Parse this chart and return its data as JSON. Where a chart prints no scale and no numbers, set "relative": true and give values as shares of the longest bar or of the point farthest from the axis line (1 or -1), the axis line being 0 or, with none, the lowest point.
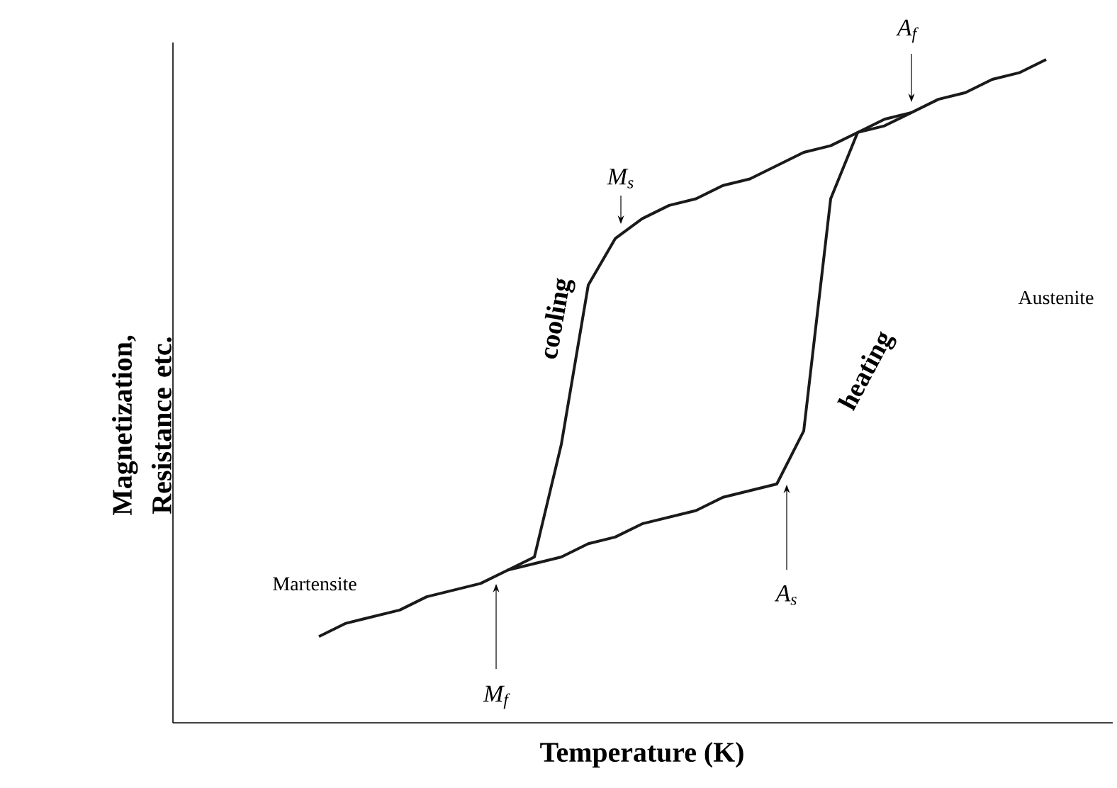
{
  "chart_data": {
    "type": "line",
    "relative": true,
    "xlabel": "Temperature (K)",
    "ylabel": "Magnetization, Resistance etc.",
    "marker": "none",
    "line_style": "solid",
    "categories": [
      null,
      null,
      null,
      null,
      null,
      null,
      null,
      null,
      null,
      null,
      null,
      null,
      null,
      null,
      null,
      null,
      null,
      null,
      null,
      null,
      null,
      null,
      null,
      null,
      null,
      null,
      null,
      null
    ],
    "series": [
      {
        "color": "#1a1a1a",
        "values": [
          0.13,
          0.15,
          0.16,
          0.17,
          0.19,
          0.2,
          0.21,
          0.23,
          0.24,
          0.25,
          0.27,
          0.28,
          0.3,
          0.31,
          0.32,
          0.34,
          0.35,
          0.36,
          0.44,
          0.79,
          0.89,
          0.91,
          0.92,
          null,
          null,
          null,
          null,
          null
        ]
      },
      {
        "color": "#1a1a1a",
        "values": [
          null,
          null,
          null,
          null,
          null,
          null,
          null,
          0.23,
          0.25,
          0.42,
          0.66,
          0.73,
          0.76,
          0.78,
          0.79,
          0.81,
          0.82,
          0.84,
          0.86,
          0.87,
          0.89,
          0.9,
          0.92,
          0.94,
          0.95,
          0.97,
          0.98,
          1
        ]
      }
    ],
    "annotations": [
      "M$_{s}$",
      "M$_{f}$",
      "A$_{s}$",
      "A$_{f}$",
      "cooling",
      "heating",
      "Martensite",
      "Austenite"
    ]
  }
}
